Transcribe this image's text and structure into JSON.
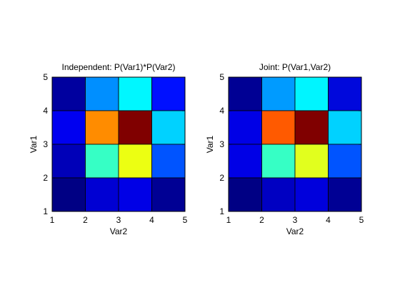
{
  "chart_data": [
    {
      "type": "heatmap",
      "title": "Independent: P(Var1)*P(Var2)",
      "xlabel": "Var2",
      "ylabel": "Var1",
      "xlim": [
        1,
        5
      ],
      "ylim": [
        1,
        5
      ],
      "xticks": [
        "1",
        "2",
        "3",
        "4",
        "5"
      ],
      "yticks": [
        "1",
        "2",
        "3",
        "4",
        "5"
      ],
      "grid": false,
      "rows_top_to_bottom": [
        [
          "#00009F",
          "#008FFF",
          "#00F7FF",
          "#0010FF"
        ],
        [
          "#0000F0",
          "#FF8C00",
          "#800000",
          "#00D2FF"
        ],
        [
          "#0000B8",
          "#36FFC5",
          "#ECFF12",
          "#0054FF"
        ],
        [
          "#000084",
          "#0000D3",
          "#0000E6",
          "#000094"
        ]
      ]
    },
    {
      "type": "heatmap",
      "title": "Joint: P(Var1,Var2)",
      "xlabel": "Var2",
      "ylabel": "Var1",
      "xlim": [
        1,
        5
      ],
      "ylim": [
        1,
        5
      ],
      "xticks": [
        "1",
        "2",
        "3",
        "4",
        "5"
      ],
      "yticks": [
        "1",
        "2",
        "3",
        "4",
        "5"
      ],
      "grid": false,
      "rows_top_to_bottom": [
        [
          "#000094",
          "#009BFF",
          "#00F5FF",
          "#0008DC"
        ],
        [
          "#0000E6",
          "#FF5A00",
          "#800000",
          "#00D2FF"
        ],
        [
          "#0000E6",
          "#36FFC5",
          "#E1FF1E",
          "#0054FF"
        ],
        [
          "#000084",
          "#0000C2",
          "#0000DC",
          "#000094"
        ]
      ]
    }
  ]
}
